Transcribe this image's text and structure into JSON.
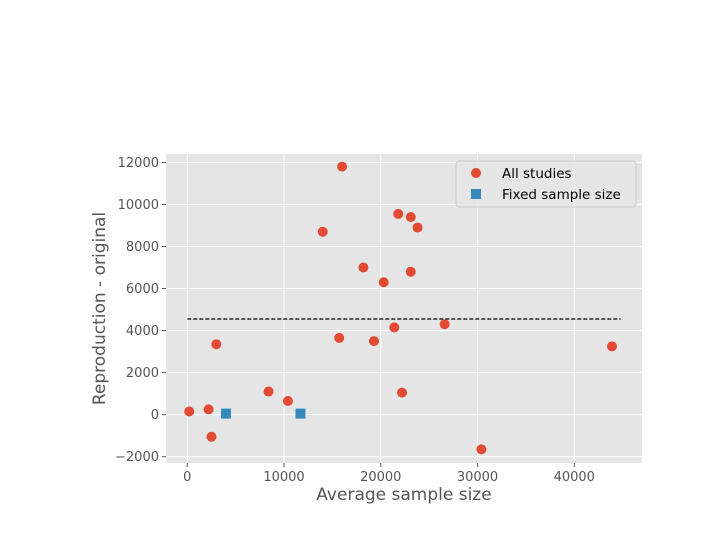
{
  "chart_data": {
    "type": "scatter",
    "title": "",
    "xlabel": "Average sample size",
    "ylabel": "Reproduction - original",
    "xlim": [
      -2200,
      47000
    ],
    "ylim": [
      -2300,
      12400
    ],
    "x_ticks": [
      0,
      10000,
      20000,
      30000,
      40000
    ],
    "y_ticks": [
      -2000,
      0,
      2000,
      4000,
      6000,
      8000,
      10000,
      12000
    ],
    "x_tick_labels": [
      "0",
      "10000",
      "20000",
      "30000",
      "40000"
    ],
    "y_tick_labels": [
      "−2000",
      "0",
      "2000",
      "4000",
      "6000",
      "8000",
      "10000",
      "12000"
    ],
    "grid": true,
    "legend_position": "top-right",
    "series": [
      {
        "name": "All studies",
        "marker": "circle",
        "color": "#E24A33",
        "points": [
          {
            "x": 200,
            "y": 150
          },
          {
            "x": 2200,
            "y": 250
          },
          {
            "x": 2500,
            "y": -1050
          },
          {
            "x": 3000,
            "y": 3350
          },
          {
            "x": 8400,
            "y": 1100
          },
          {
            "x": 10400,
            "y": 650
          },
          {
            "x": 14000,
            "y": 8700
          },
          {
            "x": 15700,
            "y": 3650
          },
          {
            "x": 16000,
            "y": 11800
          },
          {
            "x": 18200,
            "y": 7000
          },
          {
            "x": 19300,
            "y": 3500
          },
          {
            "x": 20300,
            "y": 6300
          },
          {
            "x": 21400,
            "y": 4150
          },
          {
            "x": 21800,
            "y": 9550
          },
          {
            "x": 22200,
            "y": 1050
          },
          {
            "x": 23100,
            "y": 9400
          },
          {
            "x": 23100,
            "y": 6800
          },
          {
            "x": 23800,
            "y": 8900
          },
          {
            "x": 26600,
            "y": 4300
          },
          {
            "x": 30400,
            "y": -1650
          },
          {
            "x": 43900,
            "y": 3250
          }
        ]
      },
      {
        "name": "Fixed sample size",
        "marker": "square",
        "color": "#348ABD",
        "points": [
          {
            "x": 4000,
            "y": 50
          },
          {
            "x": 11700,
            "y": 50
          }
        ]
      }
    ],
    "reference_line": {
      "style": "dashed",
      "color": "#000000",
      "y": 4550,
      "x_range": [
        0,
        44800
      ]
    }
  }
}
